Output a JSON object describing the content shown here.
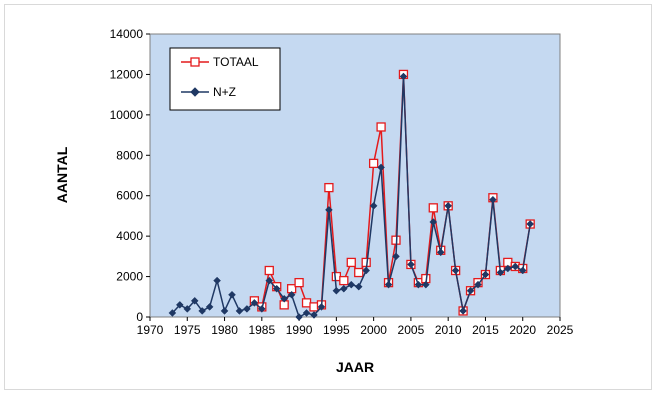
{
  "chart_data": {
    "type": "line",
    "xlabel": "JAAR",
    "ylabel": "AANTAL",
    "xlim": [
      1970,
      2025
    ],
    "ylim": [
      0,
      14000
    ],
    "xticks": [
      1970,
      1975,
      1980,
      1985,
      1990,
      1995,
      2000,
      2005,
      2010,
      2015,
      2020,
      2025
    ],
    "yticks": [
      0,
      2000,
      4000,
      6000,
      8000,
      10000,
      12000,
      14000
    ],
    "grid": false,
    "plot_background": "#c5d9f1",
    "legend_position": "top-left",
    "series": [
      {
        "name": "TOTAAL",
        "color": "#e41a1c",
        "marker": "open-square",
        "x": [
          1984,
          1985,
          1986,
          1987,
          1988,
          1989,
          1990,
          1991,
          1992,
          1993,
          1994,
          1995,
          1996,
          1997,
          1998,
          1999,
          2000,
          2001,
          2002,
          2003,
          2004,
          2005,
          2006,
          2007,
          2008,
          2009,
          2010,
          2011,
          2012,
          2013,
          2014,
          2015,
          2016,
          2017,
          2018,
          2019,
          2020,
          2021
        ],
        "y": [
          800,
          500,
          2300,
          1500,
          600,
          1400,
          1700,
          700,
          500,
          600,
          6400,
          2000,
          1800,
          2700,
          2200,
          2700,
          7600,
          9400,
          1700,
          3800,
          12000,
          2600,
          1700,
          1900,
          5400,
          3300,
          5500,
          2300,
          300,
          1300,
          1700,
          2100,
          5900,
          2300,
          2700,
          2500,
          2400,
          4600
        ]
      },
      {
        "name": "N+Z",
        "color": "#1f3864",
        "marker": "filled-diamond",
        "x": [
          1973,
          1974,
          1975,
          1976,
          1977,
          1978,
          1979,
          1980,
          1981,
          1982,
          1983,
          1984,
          1985,
          1986,
          1987,
          1988,
          1989,
          1990,
          1991,
          1992,
          1993,
          1994,
          1995,
          1996,
          1997,
          1998,
          1999,
          2000,
          2001,
          2002,
          2003,
          2004,
          2005,
          2006,
          2007,
          2008,
          2009,
          2010,
          2011,
          2012,
          2013,
          2014,
          2015,
          2016,
          2017,
          2018,
          2019,
          2020,
          2021
        ],
        "y": [
          200,
          600,
          400,
          800,
          300,
          500,
          1800,
          300,
          1100,
          300,
          400,
          700,
          400,
          1800,
          1400,
          900,
          1100,
          0,
          200,
          100,
          500,
          5300,
          1300,
          1400,
          1600,
          1500,
          2300,
          5500,
          7400,
          1600,
          3000,
          11900,
          2600,
          1600,
          1600,
          4700,
          3200,
          5500,
          2300,
          300,
          1300,
          1600,
          2100,
          5800,
          2200,
          2400,
          2500,
          2300,
          4600
        ]
      }
    ]
  }
}
